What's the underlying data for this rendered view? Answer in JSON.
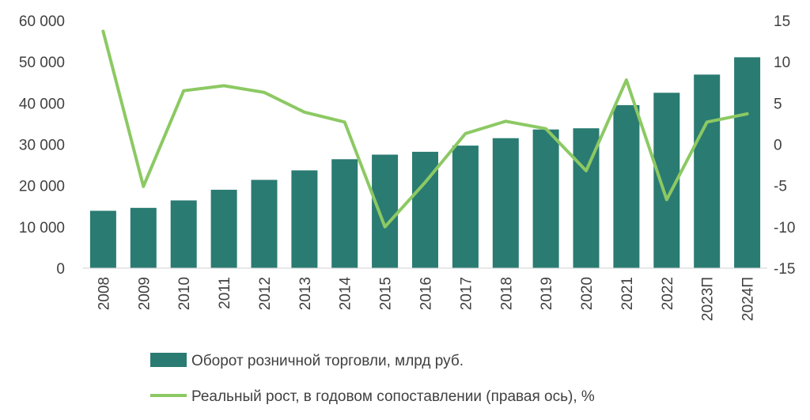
{
  "chart_data": {
    "type": "bar",
    "categories": [
      "2008",
      "2009",
      "2010",
      "2011",
      "2012",
      "2013",
      "2014",
      "2015",
      "2016",
      "2017",
      "2018",
      "2019",
      "2020",
      "2021",
      "2022",
      "2023П",
      "2024П"
    ],
    "series": [
      {
        "name": "Оборот розничной торговли, млрд руб.",
        "type": "bar",
        "axis": "left",
        "color": "#2a7b72",
        "values": [
          13900,
          14600,
          16400,
          19000,
          21400,
          23700,
          26400,
          27500,
          28200,
          29700,
          31500,
          33600,
          33900,
          39500,
          42500,
          46900,
          51100
        ]
      },
      {
        "name": "Реальный рост, в годовом сопоставлении (правая ось), %",
        "type": "line",
        "axis": "right",
        "color": "#8cc963",
        "values": [
          13.7,
          -5.1,
          6.5,
          7.1,
          6.3,
          3.9,
          2.7,
          -10.0,
          -4.6,
          1.3,
          2.8,
          1.9,
          -3.2,
          7.8,
          -6.7,
          2.7,
          3.7
        ]
      }
    ],
    "y_left": {
      "min": 0,
      "max": 60000,
      "step": 10000,
      "ticks": [
        "0",
        "10 000",
        "20 000",
        "30 000",
        "40 000",
        "50 000",
        "60 000"
      ]
    },
    "y_right": {
      "min": -15,
      "max": 15,
      "step": 5,
      "ticks": [
        "-15",
        "-10",
        "-5",
        "0",
        "5",
        "10",
        "15"
      ]
    },
    "grid": false,
    "legend_position": "bottom"
  }
}
